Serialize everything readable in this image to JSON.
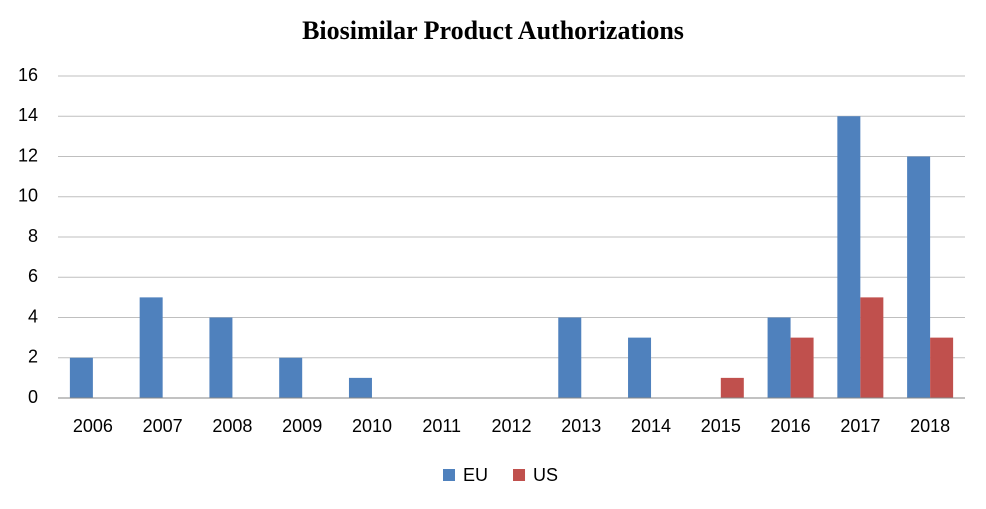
{
  "chart_data": {
    "type": "bar",
    "title": "Biosimilar Product Authorizations",
    "categories": [
      "2006",
      "2007",
      "2008",
      "2009",
      "2010",
      "2011",
      "2012",
      "2013",
      "2014",
      "2015",
      "2016",
      "2017",
      "2018"
    ],
    "series": [
      {
        "name": "EU",
        "color": "#4f81bd",
        "values": [
          2,
          5,
          4,
          2,
          1,
          0,
          0,
          4,
          3,
          0,
          4,
          14,
          12
        ]
      },
      {
        "name": "US",
        "color": "#c0504d",
        "values": [
          0,
          0,
          0,
          0,
          0,
          0,
          0,
          0,
          0,
          1,
          3,
          5,
          3
        ]
      }
    ],
    "ylim": [
      0,
      16
    ],
    "yticks": [
      0,
      2,
      4,
      6,
      8,
      10,
      12,
      14,
      16
    ],
    "grid": true,
    "legend": "bottom"
  }
}
